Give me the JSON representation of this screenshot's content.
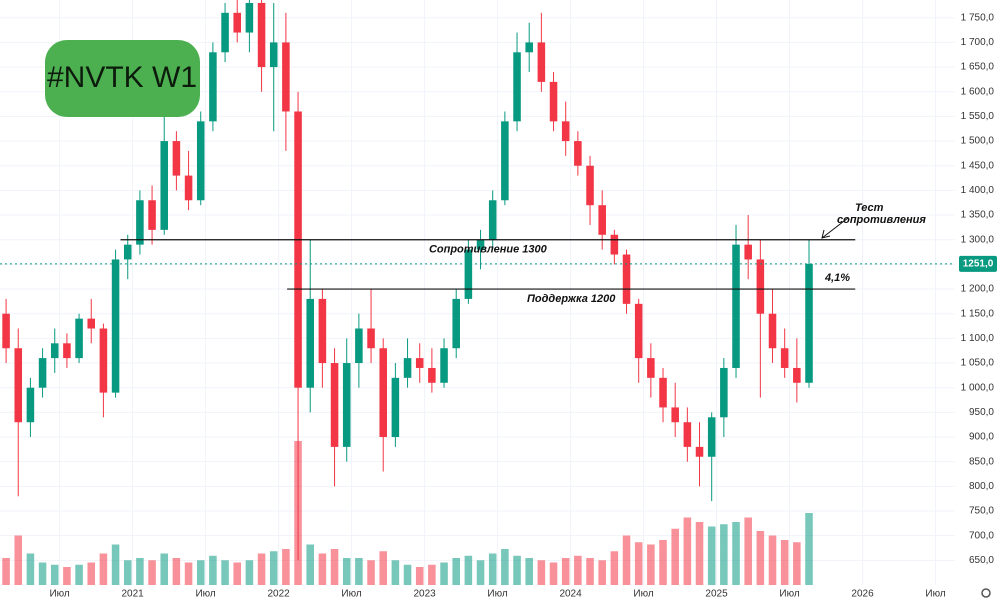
{
  "chart_data": {
    "type": "candlestick",
    "title": "#NVTK W1",
    "candles": [
      [
        1150,
        1180,
        1050,
        1080
      ],
      [
        1080,
        1120,
        780,
        930
      ],
      [
        930,
        1020,
        900,
        1000
      ],
      [
        1000,
        1080,
        980,
        1060
      ],
      [
        1060,
        1120,
        1030,
        1090
      ],
      [
        1090,
        1110,
        1040,
        1060
      ],
      [
        1060,
        1150,
        1050,
        1140
      ],
      [
        1140,
        1180,
        1090,
        1120
      ],
      [
        1120,
        1130,
        940,
        990
      ],
      [
        990,
        1280,
        980,
        1260
      ],
      [
        1260,
        1310,
        1220,
        1290
      ],
      [
        1290,
        1400,
        1270,
        1380
      ],
      [
        1380,
        1410,
        1290,
        1320
      ],
      [
        1320,
        1560,
        1310,
        1500
      ],
      [
        1500,
        1520,
        1400,
        1430
      ],
      [
        1430,
        1480,
        1360,
        1380
      ],
      [
        1380,
        1560,
        1370,
        1540
      ],
      [
        1540,
        1700,
        1520,
        1680
      ],
      [
        1680,
        1780,
        1660,
        1760
      ],
      [
        1760,
        1800,
        1700,
        1720
      ],
      [
        1720,
        1800,
        1680,
        1780
      ],
      [
        1780,
        1790,
        1600,
        1650
      ],
      [
        1650,
        1780,
        1520,
        1700
      ],
      [
        1700,
        1760,
        1480,
        1560
      ],
      [
        1560,
        1600,
        650,
        1000
      ],
      [
        1000,
        1300,
        950,
        1180
      ],
      [
        1180,
        1200,
        1000,
        1050
      ],
      [
        1050,
        1080,
        800,
        880
      ],
      [
        880,
        1100,
        850,
        1050
      ],
      [
        1050,
        1150,
        1000,
        1120
      ],
      [
        1120,
        1200,
        1050,
        1080
      ],
      [
        1080,
        1100,
        830,
        900
      ],
      [
        900,
        1050,
        880,
        1020
      ],
      [
        1020,
        1100,
        1000,
        1060
      ],
      [
        1060,
        1090,
        1010,
        1040
      ],
      [
        1040,
        1080,
        990,
        1010
      ],
      [
        1010,
        1100,
        1000,
        1080
      ],
      [
        1080,
        1200,
        1060,
        1180
      ],
      [
        1180,
        1300,
        1170,
        1280
      ],
      [
        1280,
        1320,
        1240,
        1300
      ],
      [
        1300,
        1400,
        1280,
        1380
      ],
      [
        1380,
        1560,
        1370,
        1540
      ],
      [
        1540,
        1720,
        1520,
        1680
      ],
      [
        1680,
        1740,
        1640,
        1700
      ],
      [
        1700,
        1760,
        1600,
        1620
      ],
      [
        1620,
        1640,
        1520,
        1540
      ],
      [
        1540,
        1580,
        1470,
        1500
      ],
      [
        1500,
        1520,
        1430,
        1450
      ],
      [
        1450,
        1470,
        1330,
        1370
      ],
      [
        1370,
        1400,
        1280,
        1310
      ],
      [
        1310,
        1320,
        1250,
        1270
      ],
      [
        1270,
        1280,
        1150,
        1170
      ],
      [
        1170,
        1180,
        1010,
        1060
      ],
      [
        1060,
        1090,
        980,
        1020
      ],
      [
        1020,
        1040,
        930,
        960
      ],
      [
        960,
        1010,
        900,
        930
      ],
      [
        930,
        960,
        850,
        880
      ],
      [
        880,
        930,
        800,
        860
      ],
      [
        860,
        950,
        770,
        940
      ],
      [
        940,
        1060,
        900,
        1040
      ],
      [
        1040,
        1330,
        1020,
        1290
      ],
      [
        1290,
        1350,
        1220,
        1260
      ],
      [
        1260,
        1300,
        980,
        1150
      ],
      [
        1150,
        1200,
        1050,
        1080
      ],
      [
        1080,
        1120,
        1020,
        1040
      ],
      [
        1040,
        1100,
        970,
        1010
      ],
      [
        1010,
        1300,
        1000,
        1251
      ]
    ],
    "volumes": [
      60,
      110,
      70,
      50,
      45,
      40,
      45,
      50,
      70,
      90,
      55,
      60,
      55,
      70,
      60,
      50,
      55,
      65,
      55,
      50,
      55,
      70,
      75,
      80,
      320,
      90,
      70,
      80,
      60,
      60,
      55,
      75,
      55,
      45,
      40,
      45,
      50,
      60,
      65,
      55,
      70,
      80,
      65,
      60,
      55,
      50,
      60,
      65,
      60,
      55,
      75,
      110,
      95,
      90,
      100,
      125,
      150,
      140,
      130,
      135,
      140,
      150,
      120,
      110,
      100,
      95,
      160
    ],
    "up_color": "#089981",
    "down_color": "#f23645",
    "xlim": [
      0,
      78.5
    ],
    "ylim": [
      600,
      1786
    ],
    "vlim": [
      0,
      400
    ],
    "grid": true,
    "xticks": [
      {
        "value": 4.9,
        "label": "Июл"
      },
      {
        "value": 10.9,
        "label": "2021"
      },
      {
        "value": 16.9,
        "label": "Июл"
      },
      {
        "value": 22.9,
        "label": "2022"
      },
      {
        "value": 28.9,
        "label": "Июл"
      },
      {
        "value": 34.9,
        "label": "2023"
      },
      {
        "value": 40.9,
        "label": "Июл"
      },
      {
        "value": 46.9,
        "label": "2024"
      },
      {
        "value": 52.9,
        "label": "Июл"
      },
      {
        "value": 58.9,
        "label": "2025"
      },
      {
        "value": 64.9,
        "label": "Июл"
      },
      {
        "value": 70.9,
        "label": "2026"
      },
      {
        "value": 76.9,
        "label": "Июл"
      }
    ],
    "yticks": [
      {
        "value": 650,
        "label": "650,0"
      },
      {
        "value": 700,
        "label": "700,0"
      },
      {
        "value": 750,
        "label": "750,0"
      },
      {
        "value": 800,
        "label": "800,0"
      },
      {
        "value": 850,
        "label": "850,0"
      },
      {
        "value": 900,
        "label": "900,0"
      },
      {
        "value": 950,
        "label": "950,0"
      },
      {
        "value": 1000,
        "label": "1 000,0"
      },
      {
        "value": 1050,
        "label": "1 050,0"
      },
      {
        "value": 1100,
        "label": "1 100,0"
      },
      {
        "value": 1150,
        "label": "1 150,0"
      },
      {
        "value": 1200,
        "label": "1 200,0"
      },
      {
        "value": 1250,
        "label": "1 250,0"
      },
      {
        "value": 1300,
        "label": "1 300,0"
      },
      {
        "value": 1350,
        "label": "1 350,0"
      },
      {
        "value": 1400,
        "label": "1 400,0"
      },
      {
        "value": 1450,
        "label": "1 450,0"
      },
      {
        "value": 1500,
        "label": "1 500,0"
      },
      {
        "value": 1550,
        "label": "1 550,0"
      },
      {
        "value": 1600,
        "label": "1 600,0"
      },
      {
        "value": 1650,
        "label": "1 650,0"
      },
      {
        "value": 1700,
        "label": "1 700,0"
      },
      {
        "value": 1750,
        "label": "1 750,0"
      }
    ],
    "last_price": {
      "value": 1251,
      "label": "1251,0"
    },
    "levels": [
      {
        "value": 1300,
        "label": "Сопротивление 1300",
        "x0": 9.9,
        "x1": 70.3
      },
      {
        "value": 1200,
        "label": "Поддержка 1200",
        "x0": 23.6,
        "x1": 70.3
      }
    ],
    "annotations": [
      "4,1%",
      "Тест",
      "сопротивления"
    ]
  }
}
